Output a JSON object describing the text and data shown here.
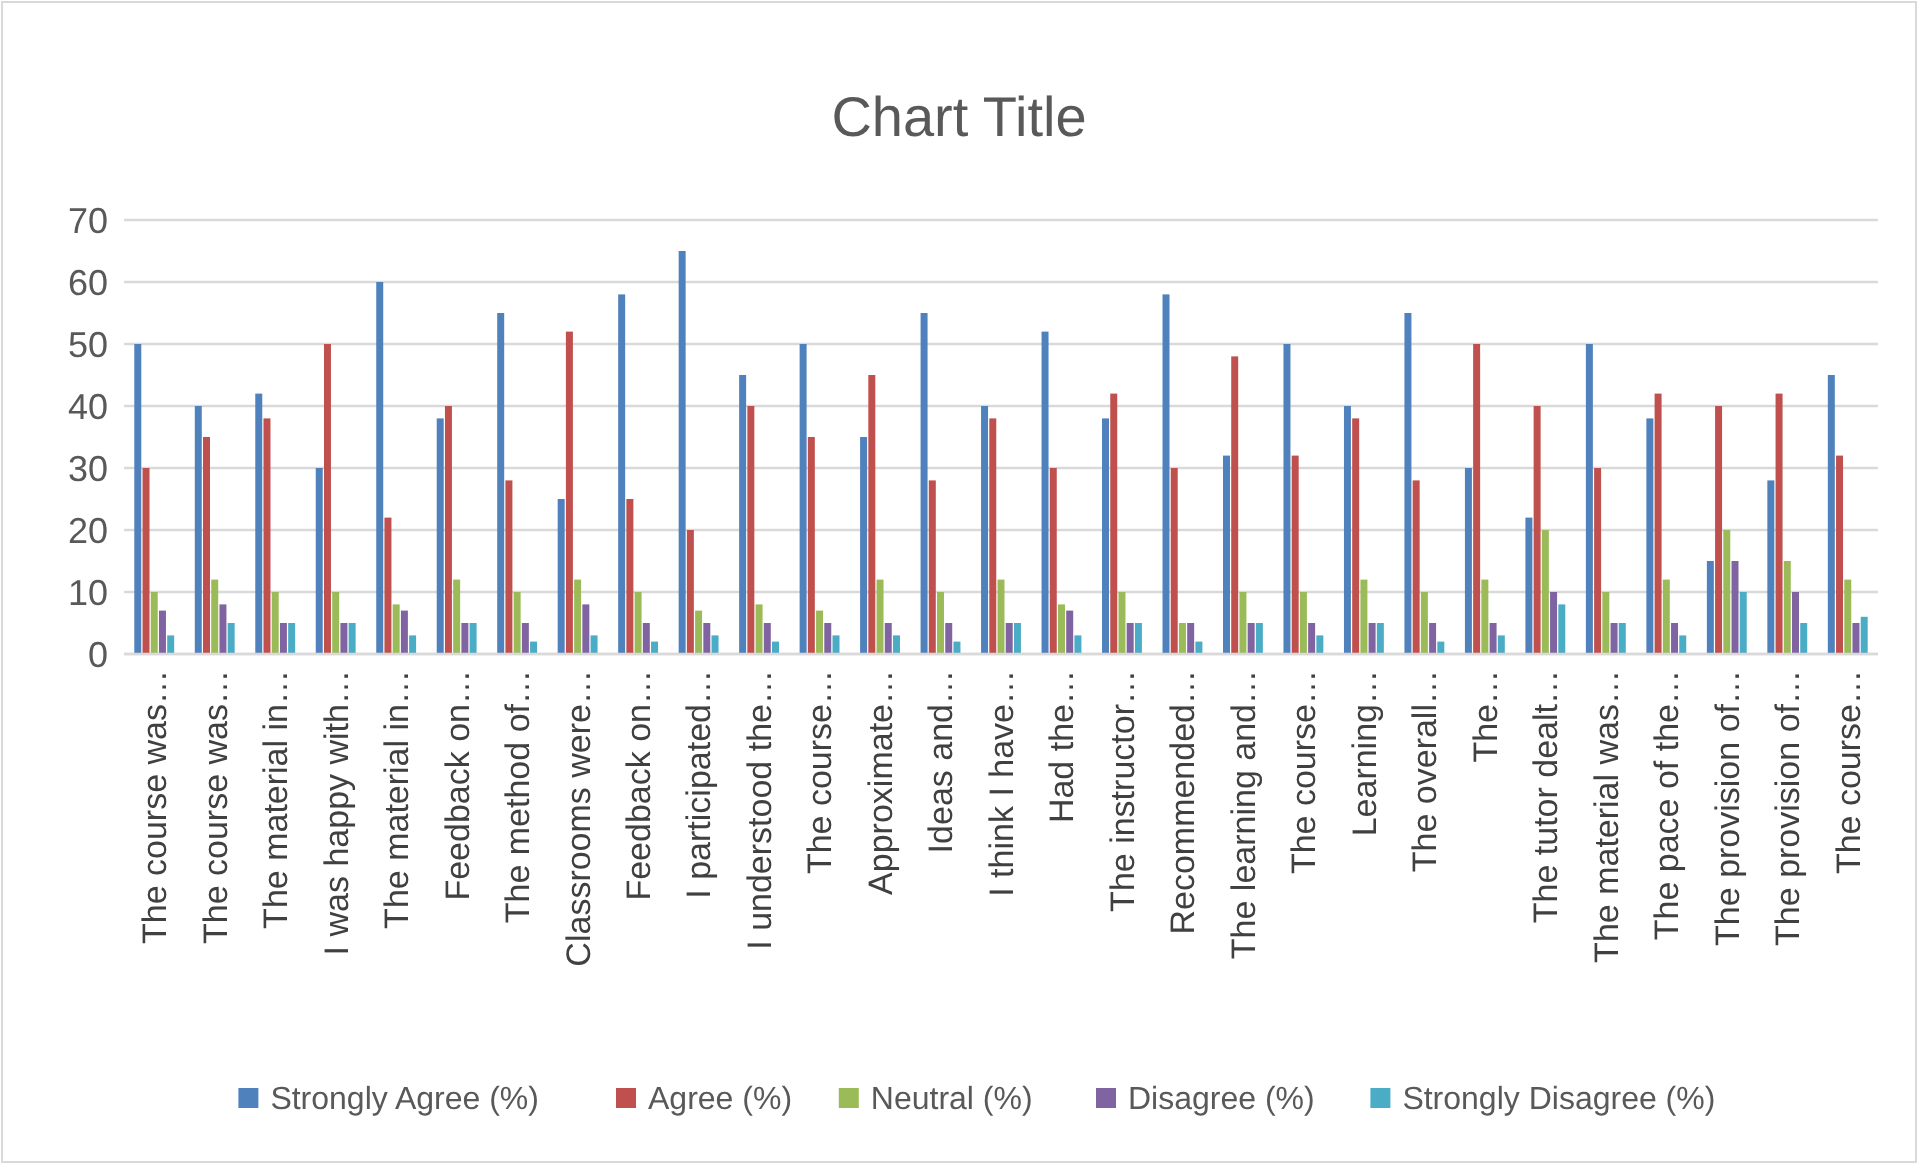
{
  "chart_data": {
    "type": "bar",
    "title": "Chart Title",
    "categories": [
      "The course was…",
      "The course was…",
      "The material in…",
      "I was happy with…",
      "The material in…",
      "Feedback on…",
      "The method of…",
      "Classrooms were…",
      "Feedback on…",
      "I participated…",
      "I understood the…",
      "The course…",
      "Approximate…",
      "Ideas and…",
      "I think I have…",
      "Had the…",
      "The instructor…",
      "Recommended…",
      "The learning and…",
      "The course…",
      "Learning…",
      "The overall…",
      "The…",
      "The tutor dealt…",
      "The material was…",
      "The pace of the…",
      "The provision of…",
      "The provision of…",
      "The course…"
    ],
    "series": [
      {
        "name": "Strongly Agree (%)",
        "color": "#4f81bd",
        "values": [
          50,
          40,
          42,
          30,
          60,
          38,
          55,
          25,
          58,
          65,
          45,
          50,
          35,
          55,
          40,
          52,
          38,
          58,
          32,
          50,
          40,
          55,
          30,
          22,
          50,
          38,
          15,
          28,
          45
        ]
      },
      {
        "name": "Agree (%)",
        "color": "#c0504d",
        "values": [
          30,
          35,
          38,
          50,
          22,
          40,
          28,
          52,
          25,
          20,
          40,
          35,
          45,
          28,
          38,
          30,
          42,
          30,
          48,
          32,
          38,
          28,
          50,
          40,
          30,
          42,
          40,
          42,
          32
        ]
      },
      {
        "name": "Neutral (%)",
        "color": "#9bbb59",
        "values": [
          10,
          12,
          10,
          10,
          8,
          12,
          10,
          12,
          10,
          7,
          8,
          7,
          12,
          10,
          12,
          8,
          10,
          5,
          10,
          10,
          12,
          10,
          12,
          20,
          10,
          12,
          20,
          15,
          12
        ]
      },
      {
        "name": "Disagree (%)",
        "color": "#8064a2",
        "values": [
          7,
          8,
          5,
          5,
          7,
          5,
          5,
          8,
          5,
          5,
          5,
          5,
          5,
          5,
          5,
          7,
          5,
          5,
          5,
          5,
          5,
          5,
          5,
          10,
          5,
          5,
          15,
          10,
          5
        ]
      },
      {
        "name": "Strongly Disagree (%)",
        "color": "#4bacc6",
        "values": [
          3,
          5,
          5,
          5,
          3,
          5,
          2,
          3,
          2,
          3,
          2,
          3,
          3,
          2,
          5,
          3,
          5,
          2,
          5,
          3,
          5,
          2,
          3,
          8,
          5,
          3,
          10,
          5,
          6
        ]
      }
    ],
    "ylim": [
      0,
      70
    ],
    "yticks": [
      0,
      10,
      20,
      30,
      40,
      50,
      60,
      70
    ],
    "grid": "y",
    "legend": "bottom"
  }
}
